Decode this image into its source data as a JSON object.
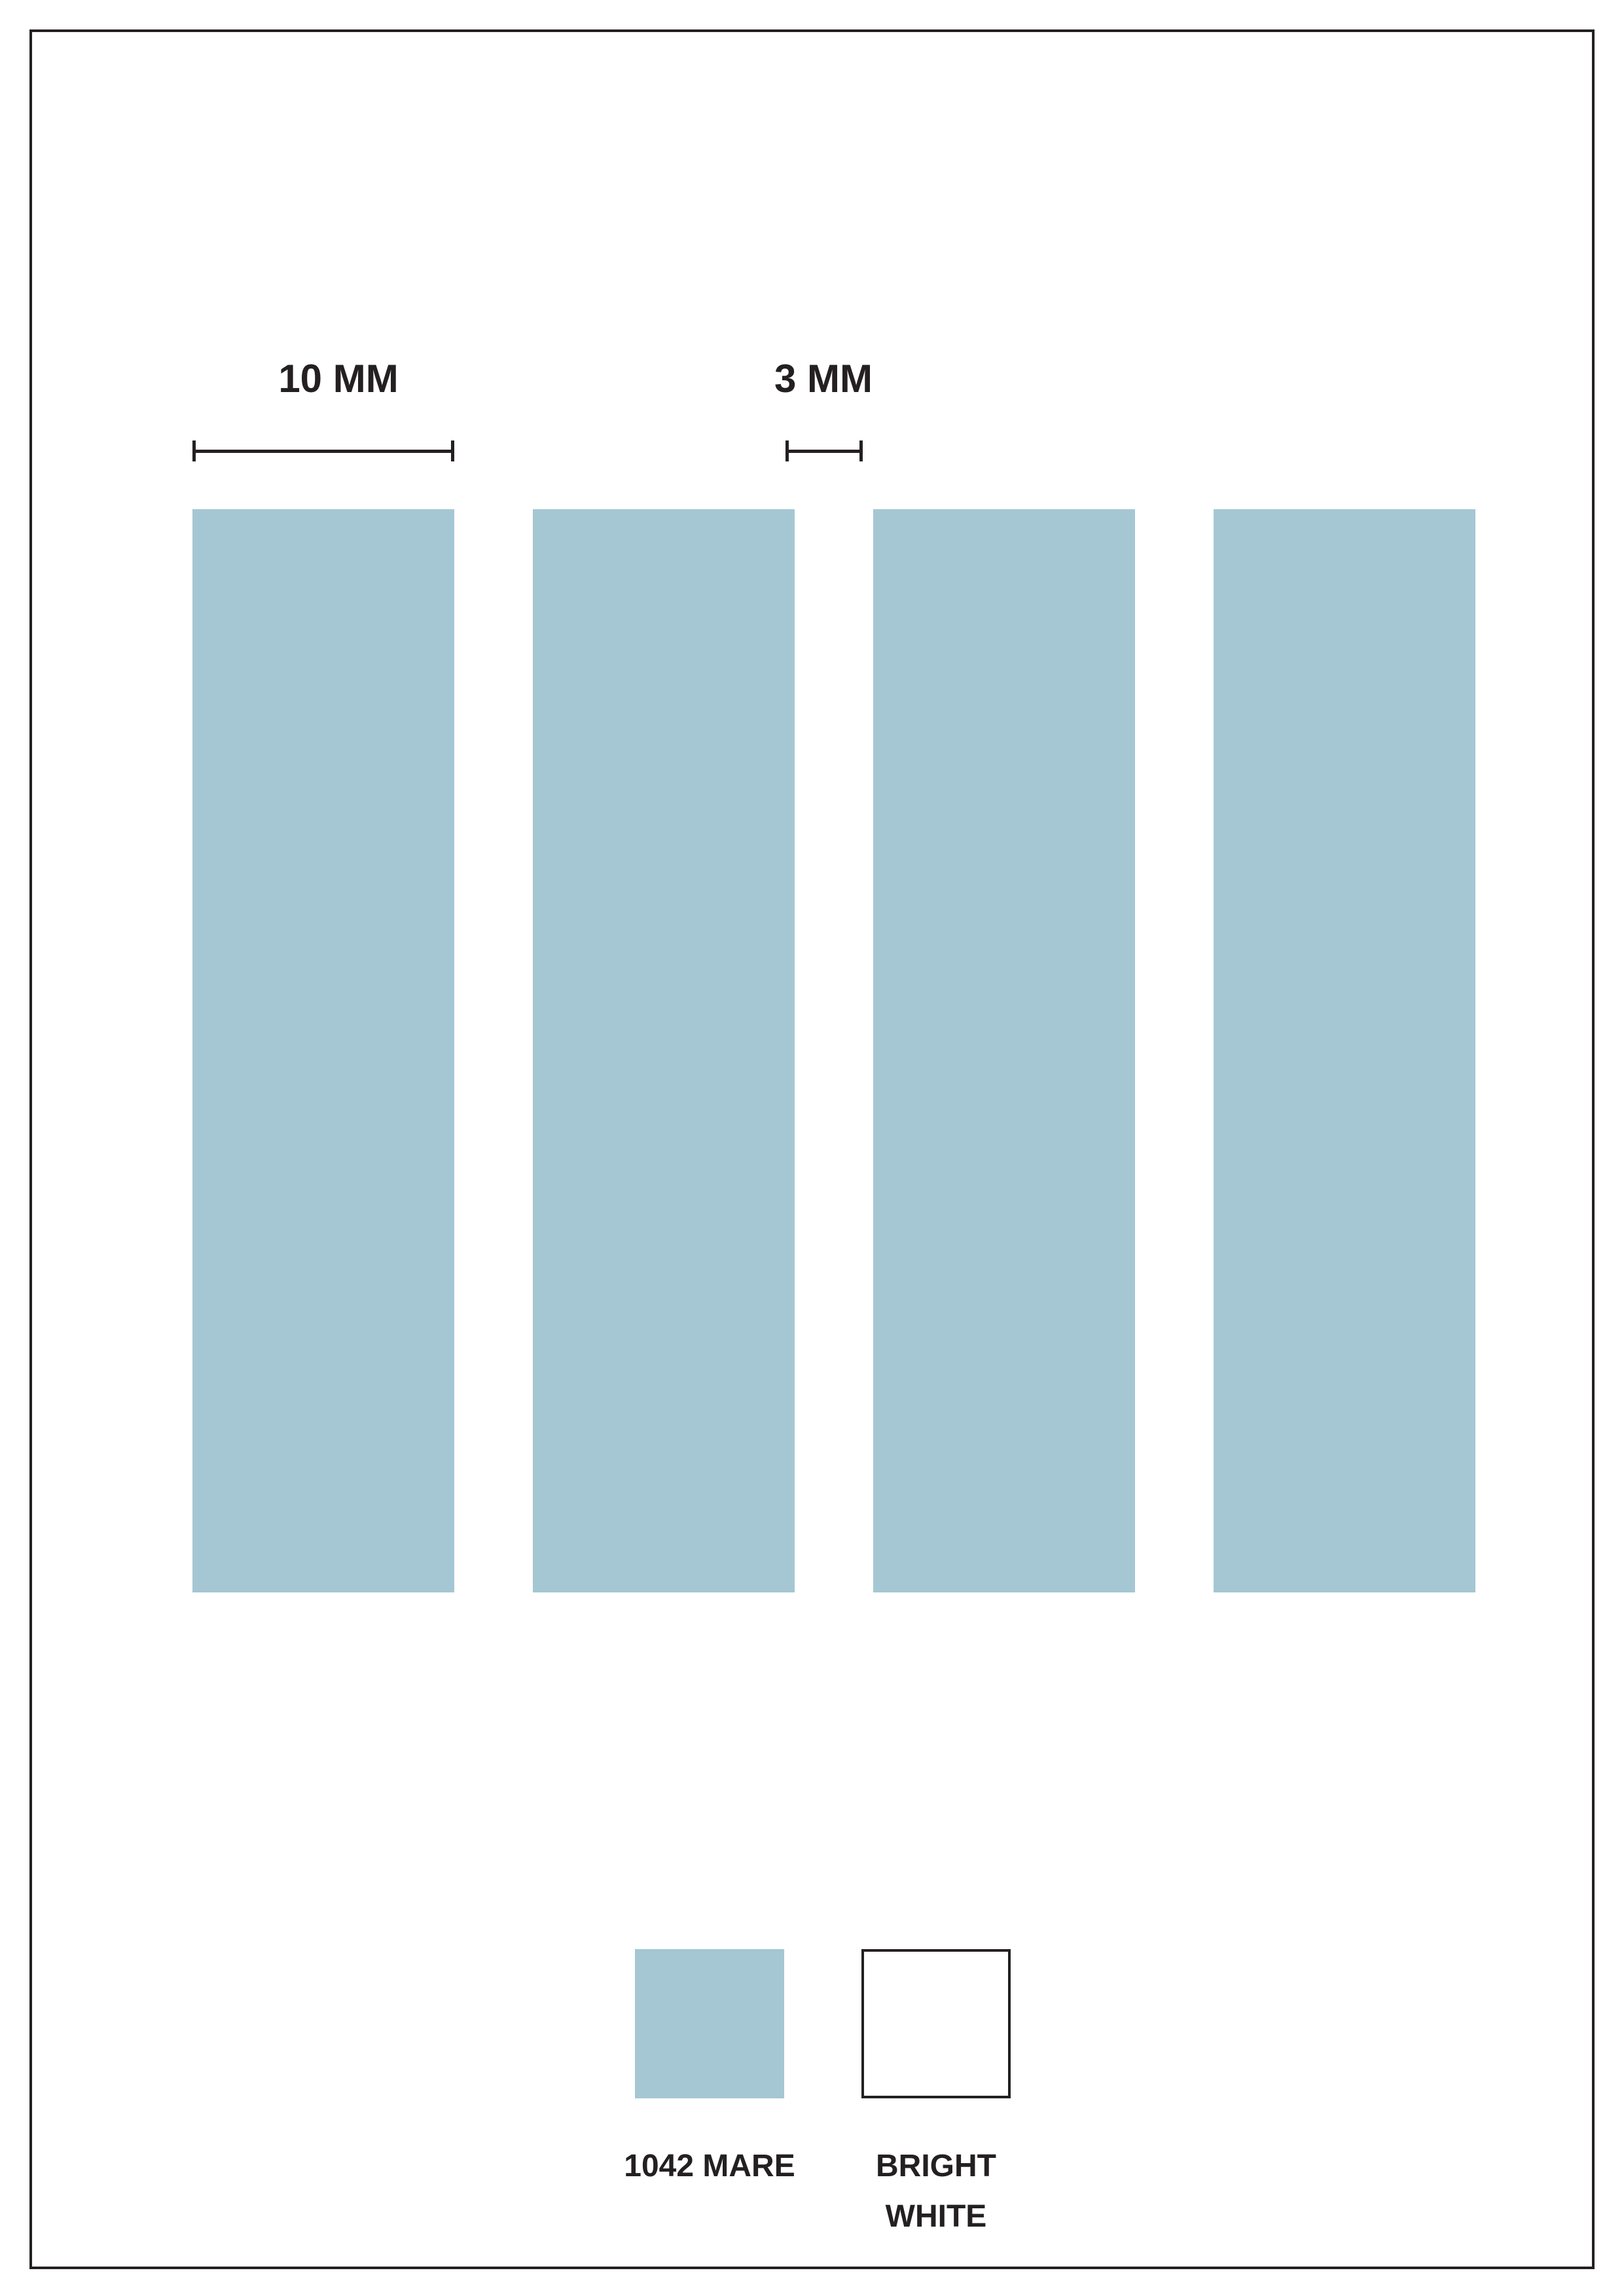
{
  "colors": {
    "ink": "#242021",
    "paper": "#ffffff",
    "stripe": "#a4c7d3"
  },
  "measurements": {
    "stripe_width_label": "10 MM",
    "gap_width_label": "3 MM"
  },
  "pattern": {
    "stripe_count": 4,
    "stripe_color_name": "1042 MARE",
    "background_color_name": "BRIGHT WHITE"
  },
  "legend": {
    "items": [
      {
        "swatch_color": "#a4c7d3",
        "lines": [
          "1042 MARE"
        ]
      },
      {
        "swatch_color": "#ffffff",
        "lines": [
          "BRIGHT",
          "WHITE"
        ]
      }
    ]
  }
}
